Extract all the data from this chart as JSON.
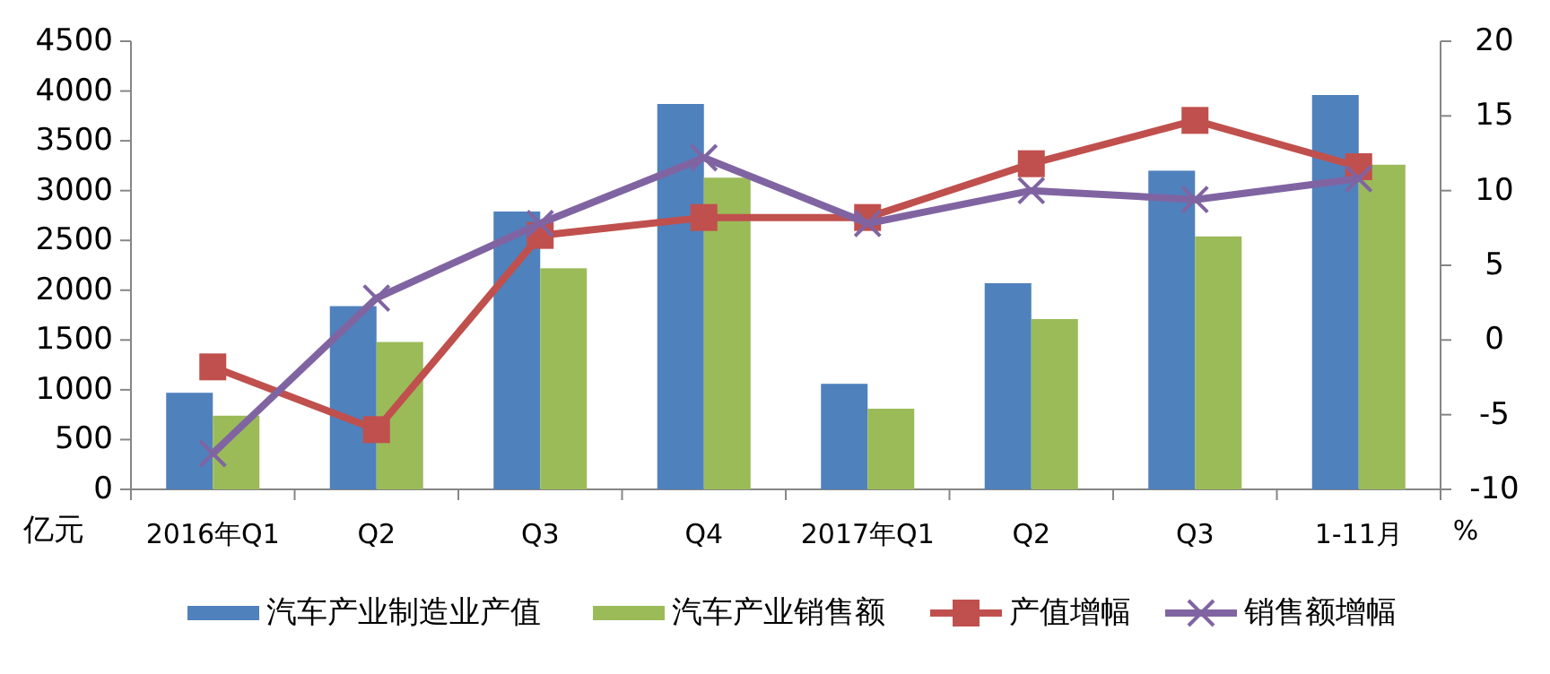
{
  "chart_data": {
    "type": "bar",
    "ylabel": "亿元",
    "y2label": "%",
    "categories": [
      "2016年Q1",
      "Q2",
      "Q3",
      "Q4",
      "2017年Q1",
      "Q2",
      "Q3",
      "1-11月"
    ],
    "ylim": [
      0,
      4500
    ],
    "yticks": [
      0,
      500,
      1000,
      1500,
      2000,
      2500,
      3000,
      3500,
      4000,
      4500
    ],
    "y2lim": [
      -10,
      20
    ],
    "y2ticks": [
      -10,
      -5,
      0,
      5,
      10,
      15,
      20
    ],
    "grid": false,
    "legend": "bottom",
    "series": [
      {
        "name": "汽车产业制造业产值",
        "color": "#4f81bd",
        "values": [
          970,
          1840,
          2790,
          3870,
          1060,
          2070,
          3200,
          3960
        ]
      },
      {
        "name": "汽车产业销售额",
        "color": "#9bbb59",
        "values": [
          740,
          1480,
          2220,
          3130,
          810,
          1710,
          2540,
          3260
        ]
      },
      {
        "name": "产值增幅",
        "type": "line",
        "axis": "y2",
        "marker": "square",
        "color": "#c0504d",
        "values": [
          -1.8,
          -6.0,
          7.0,
          8.2,
          8.2,
          11.8,
          14.7,
          11.6
        ]
      },
      {
        "name": "销售额增幅",
        "type": "line",
        "axis": "y2",
        "marker": "cross",
        "color": "#8064a2",
        "values": [
          -7.6,
          2.8,
          7.8,
          12.2,
          7.8,
          10.0,
          9.4,
          10.8
        ]
      }
    ]
  }
}
